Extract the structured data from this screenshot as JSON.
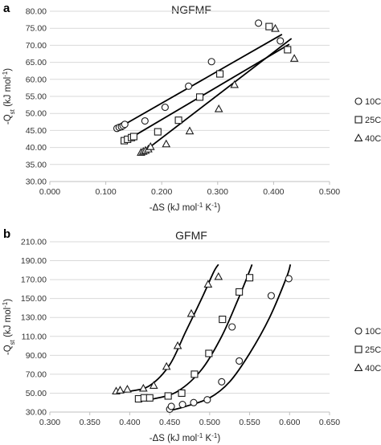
{
  "chart_data": [
    {
      "type": "scatter",
      "panel": "a",
      "title": "NGFMF",
      "xlabel": "-ΔS (kJ mol-1 K-1)",
      "ylabel": "-Qst (kJ mol-1)",
      "xlim": [
        0,
        0.5
      ],
      "ylim": [
        30,
        80
      ],
      "xticks": [
        "0.000",
        "0.100",
        "0.200",
        "0.300",
        "0.400",
        "0.500"
      ],
      "yticks": [
        "30.00",
        "35.00",
        "40.00",
        "45.00",
        "50.00",
        "55.00",
        "60.00",
        "65.00",
        "70.00",
        "75.00",
        "80.00"
      ],
      "grid": "horizontal",
      "legend": "right",
      "series": [
        {
          "name": "10C",
          "marker": "circle",
          "x": [
            0.12,
            0.124,
            0.128,
            0.131,
            0.134,
            0.17,
            0.206,
            0.248,
            0.289,
            0.373,
            0.412
          ],
          "y": [
            45.6,
            45.9,
            46.1,
            46.4,
            46.8,
            47.8,
            51.8,
            58.0,
            65.2,
            76.5,
            71.3
          ],
          "trend": [
            [
              0.118,
              45.3
            ],
            [
              0.415,
              73.2
            ]
          ]
        },
        {
          "name": "25C",
          "marker": "square",
          "x": [
            0.133,
            0.139,
            0.146,
            0.15,
            0.193,
            0.23,
            0.268,
            0.304,
            0.392,
            0.425
          ],
          "y": [
            42.0,
            42.4,
            42.9,
            43.2,
            44.6,
            48.0,
            54.8,
            61.6,
            75.5,
            68.7
          ],
          "trend": [
            [
              0.132,
              41.6
            ],
            [
              0.428,
              70.3
            ]
          ]
        },
        {
          "name": "40C",
          "marker": "triangle",
          "x": [
            0.163,
            0.167,
            0.171,
            0.176,
            0.18,
            0.208,
            0.25,
            0.302,
            0.33,
            0.403,
            0.437
          ],
          "y": [
            38.5,
            38.8,
            39.1,
            39.5,
            40.2,
            41.0,
            44.8,
            51.3,
            58.4,
            74.9,
            66.1
          ],
          "trend": [
            [
              0.162,
              38.0
            ],
            [
              0.432,
              72.0
            ]
          ]
        }
      ]
    },
    {
      "type": "scatter",
      "panel": "b",
      "title": "GFMF",
      "xlabel": "-ΔS (kJ mol-1 K-1)",
      "ylabel": "-Qst (kJ mol-1)",
      "xlim": [
        0.3,
        0.65
      ],
      "ylim": [
        30,
        210
      ],
      "xticks": [
        "0.300",
        "0.350",
        "0.400",
        "0.450",
        "0.500",
        "0.550",
        "0.600",
        "0.650"
      ],
      "yticks": [
        "30.00",
        "50.00",
        "70.00",
        "90.00",
        "110.00",
        "130.00",
        "150.00",
        "170.00",
        "190.00",
        "210.00"
      ],
      "grid": "horizontal",
      "legend": "right",
      "series": [
        {
          "name": "10C",
          "marker": "circle",
          "x": [
            0.45,
            0.452,
            0.466,
            0.48,
            0.497,
            0.515,
            0.528,
            0.537,
            0.577,
            0.599
          ],
          "y": [
            33,
            36,
            38,
            40,
            43,
            62,
            120,
            84,
            153,
            171
          ],
          "trend": [
            [
              0.448,
              31
            ],
            [
              0.47,
              36
            ],
            [
              0.5,
              45
            ],
            [
              0.525,
              62
            ],
            [
              0.55,
              92
            ],
            [
              0.575,
              130
            ],
            [
              0.596,
              172
            ],
            [
              0.601,
              186
            ]
          ]
        },
        {
          "name": "25C",
          "marker": "square",
          "x": [
            0.411,
            0.418,
            0.425,
            0.448,
            0.465,
            0.481,
            0.499,
            0.516,
            0.537,
            0.55
          ],
          "y": [
            44,
            45,
            45,
            47,
            50,
            70,
            92,
            128,
            157,
            172
          ],
          "trend": [
            [
              0.41,
              42
            ],
            [
              0.43,
              44
            ],
            [
              0.46,
              52
            ],
            [
              0.49,
              75
            ],
            [
              0.515,
              110
            ],
            [
              0.535,
              148
            ],
            [
              0.548,
              175
            ],
            [
              0.553,
              186
            ]
          ]
        },
        {
          "name": "40C",
          "marker": "triangle",
          "x": [
            0.383,
            0.388,
            0.397,
            0.417,
            0.43,
            0.446,
            0.46,
            0.477,
            0.498,
            0.511
          ],
          "y": [
            52,
            53,
            54,
            55,
            58,
            78,
            100,
            134,
            165,
            173
          ],
          "trend": [
            [
              0.382,
              51
            ],
            [
              0.4,
              52
            ],
            [
              0.425,
              58
            ],
            [
              0.45,
              80
            ],
            [
              0.47,
              115
            ],
            [
              0.49,
              150
            ],
            [
              0.505,
              178
            ],
            [
              0.511,
              186
            ]
          ]
        }
      ]
    }
  ]
}
